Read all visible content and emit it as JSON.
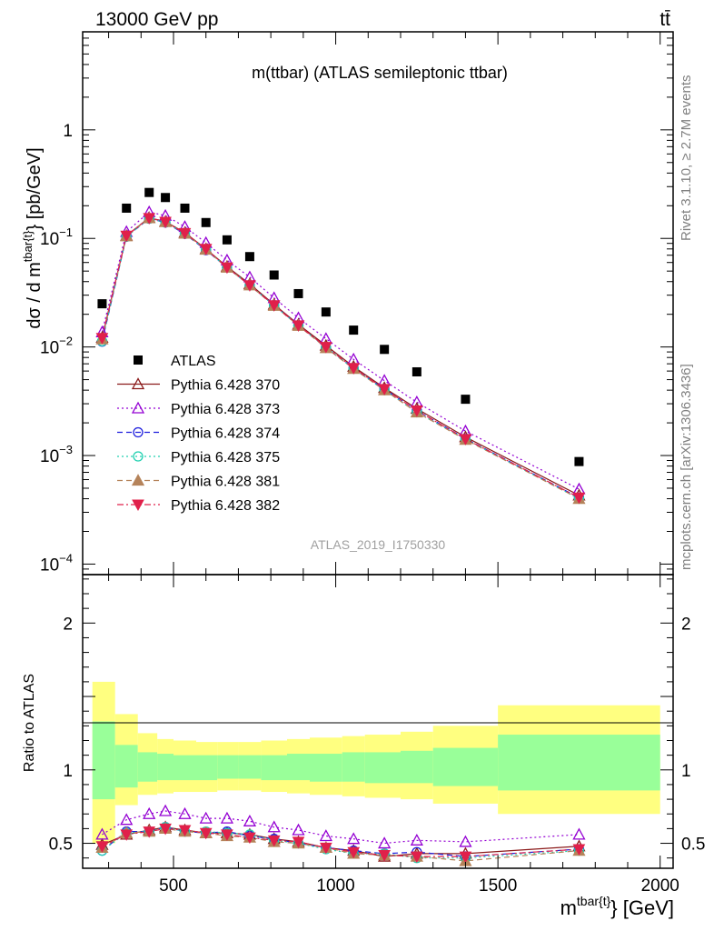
{
  "header": {
    "left": "13000 GeV pp",
    "right": "tt̄"
  },
  "side_labels": {
    "rivet": "Rivet 3.1.10, ≥ 2.7M events",
    "mcplots": "mcplots.cern.ch [arXiv:1306.3436]"
  },
  "chart_data": [
    {
      "type": "scatter",
      "title": "m(ttbar) (ATLAS semileptonic ttbar)",
      "watermark": "ATLAS_2019_I1750330",
      "ylabel_main": "dσ / d m",
      "ylabel_sup": "tbar{t}",
      "ylabel_unit": "} [pb/GeV]",
      "yscale": "log",
      "ylim": [
        8e-05,
        8
      ],
      "xlim": [
        220,
        2040
      ],
      "ytick_labels": [
        {
          "value": 1,
          "base": "1",
          "exp": ""
        },
        {
          "value": 0.1,
          "base": "10",
          "exp": "−1"
        },
        {
          "value": 0.01,
          "base": "10",
          "exp": "−2"
        },
        {
          "value": 0.001,
          "base": "10",
          "exp": "−3"
        },
        {
          "value": 0.0001,
          "base": "10",
          "exp": "−4"
        }
      ],
      "x": [
        280,
        355,
        425,
        475,
        535,
        600,
        665,
        735,
        810,
        885,
        970,
        1055,
        1150,
        1250,
        1400,
        1750
      ],
      "legend_position": "center-left",
      "series": [
        {
          "name": "ATLAS",
          "color": "#000000",
          "marker": "square",
          "line": "none",
          "values": [
            0.025,
            0.19,
            0.265,
            0.238,
            0.19,
            0.14,
            0.097,
            0.068,
            0.046,
            0.031,
            0.021,
            0.0143,
            0.0095,
            0.0059,
            0.0033,
            0.00088
          ]
        },
        {
          "name": "Pythia 6.428 370",
          "color": "#8b1a1a",
          "marker": "triangle-open",
          "line": "solid",
          "values": [
            0.0122,
            0.106,
            0.155,
            0.143,
            0.113,
            0.08,
            0.055,
            0.038,
            0.0246,
            0.0161,
            0.0103,
            0.0066,
            0.0042,
            0.0027,
            0.00148,
            0.00043
          ]
        },
        {
          "name": "Pythia 6.428 373",
          "color": "#9400d3",
          "marker": "triangle-open",
          "line": "dotted",
          "values": [
            0.0137,
            0.115,
            0.175,
            0.162,
            0.128,
            0.091,
            0.063,
            0.044,
            0.0283,
            0.0185,
            0.0119,
            0.0077,
            0.0049,
            0.0031,
            0.00168,
            0.00049
          ]
        },
        {
          "name": "Pythia 6.428 374",
          "color": "#1f1fdd",
          "marker": "circle-open",
          "line": "dashed",
          "values": [
            0.0112,
            0.104,
            0.152,
            0.14,
            0.11,
            0.078,
            0.054,
            0.037,
            0.0242,
            0.0158,
            0.0099,
            0.0064,
            0.0041,
            0.0026,
            0.00143,
            0.00041
          ]
        },
        {
          "name": "Pythia 6.428 375",
          "color": "#20d0b0",
          "marker": "circle-open",
          "line": "dotted",
          "values": [
            0.0113,
            0.104,
            0.152,
            0.141,
            0.111,
            0.079,
            0.054,
            0.037,
            0.024,
            0.0157,
            0.0099,
            0.0063,
            0.004,
            0.0025,
            0.00141,
            0.0004
          ]
        },
        {
          "name": "Pythia 6.428 381",
          "color": "#b5835a",
          "marker": "triangle-filled",
          "line": "dashed",
          "values": [
            0.0118,
            0.105,
            0.154,
            0.142,
            0.111,
            0.079,
            0.054,
            0.037,
            0.024,
            0.0157,
            0.0098,
            0.0063,
            0.004,
            0.0025,
            0.0014,
            0.0004
          ]
        },
        {
          "name": "Pythia 6.428 382",
          "color": "#e0204a",
          "marker": "triangledown-filled",
          "line": "dashdot",
          "values": [
            0.0121,
            0.106,
            0.154,
            0.142,
            0.112,
            0.08,
            0.054,
            0.037,
            0.0242,
            0.0158,
            0.01,
            0.0064,
            0.0041,
            0.0026,
            0.00142,
            0.00041
          ]
        }
      ]
    },
    {
      "type": "scatter",
      "ylabel": "Ratio to ATLAS",
      "xlabel_main": "m",
      "xlabel_sup": "tbar{t}",
      "xlabel_unit": "} [GeV]",
      "xlim": [
        220,
        2040
      ],
      "ylim": [
        0.33,
        2.33
      ],
      "x_tick_labels": [
        500,
        1000,
        1500,
        2000
      ],
      "y_tick_labels": [
        {
          "value": 0.5,
          "label": "0.5"
        },
        {
          "value": 1,
          "label": "1"
        },
        {
          "value": 2,
          "label": "2"
        }
      ],
      "uncertainty_bands": {
        "edges": [
          250,
          320,
          390,
          450,
          500,
          570,
          635,
          700,
          770,
          850,
          920,
          1020,
          1090,
          1200,
          1300,
          1500,
          2000
        ],
        "outer": [
          [
            0.5,
            1.6
          ],
          [
            0.76,
            1.38
          ],
          [
            0.83,
            1.25
          ],
          [
            0.84,
            1.21
          ],
          [
            0.85,
            1.2
          ],
          [
            0.85,
            1.19
          ],
          [
            0.86,
            1.19
          ],
          [
            0.86,
            1.19
          ],
          [
            0.85,
            1.2
          ],
          [
            0.84,
            1.21
          ],
          [
            0.83,
            1.22
          ],
          [
            0.82,
            1.23
          ],
          [
            0.81,
            1.24
          ],
          [
            0.8,
            1.26
          ],
          [
            0.77,
            1.3
          ],
          [
            0.7,
            1.44
          ]
        ],
        "inner": [
          [
            0.8,
            1.33
          ],
          [
            0.88,
            1.17
          ],
          [
            0.92,
            1.12
          ],
          [
            0.93,
            1.11
          ],
          [
            0.93,
            1.1
          ],
          [
            0.93,
            1.1
          ],
          [
            0.94,
            1.1
          ],
          [
            0.94,
            1.1
          ],
          [
            0.93,
            1.1
          ],
          [
            0.93,
            1.11
          ],
          [
            0.92,
            1.11
          ],
          [
            0.92,
            1.12
          ],
          [
            0.91,
            1.12
          ],
          [
            0.91,
            1.13
          ],
          [
            0.89,
            1.15
          ],
          [
            0.86,
            1.24
          ]
        ],
        "outer_color": "#ffff80",
        "inner_color": "#99ff99"
      },
      "series": [
        {
          "name": "Pythia 6.428 370",
          "values": [
            0.49,
            0.56,
            0.59,
            0.61,
            0.59,
            0.57,
            0.57,
            0.56,
            0.53,
            0.51,
            0.47,
            0.45,
            0.41,
            0.43,
            0.43,
            0.48
          ]
        },
        {
          "name": "Pythia 6.428 373",
          "values": [
            0.56,
            0.66,
            0.7,
            0.72,
            0.7,
            0.67,
            0.67,
            0.65,
            0.61,
            0.59,
            0.55,
            0.53,
            0.5,
            0.52,
            0.51,
            0.56
          ]
        },
        {
          "name": "Pythia 6.428 374",
          "values": [
            0.45,
            0.58,
            0.58,
            0.61,
            0.58,
            0.57,
            0.58,
            0.55,
            0.53,
            0.5,
            0.47,
            0.45,
            0.43,
            0.44,
            0.41,
            0.46
          ]
        },
        {
          "name": "Pythia 6.428 375",
          "values": [
            0.45,
            0.57,
            0.58,
            0.61,
            0.58,
            0.58,
            0.57,
            0.56,
            0.52,
            0.5,
            0.46,
            0.43,
            0.43,
            0.4,
            0.4,
            0.45
          ]
        },
        {
          "name": "Pythia 6.428 381",
          "values": [
            0.47,
            0.57,
            0.58,
            0.6,
            0.58,
            0.57,
            0.55,
            0.54,
            0.51,
            0.5,
            0.47,
            0.43,
            0.42,
            0.41,
            0.38,
            0.45
          ]
        },
        {
          "name": "Pythia 6.428 382",
          "values": [
            0.48,
            0.56,
            0.58,
            0.6,
            0.59,
            0.57,
            0.56,
            0.54,
            0.52,
            0.51,
            0.47,
            0.44,
            0.42,
            0.41,
            0.41,
            0.46
          ]
        }
      ]
    }
  ]
}
